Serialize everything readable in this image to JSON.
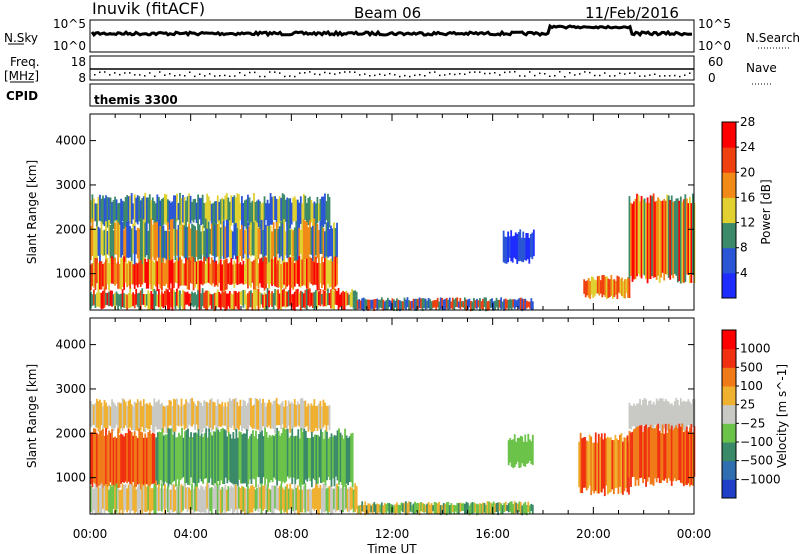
{
  "header": {
    "station": "Inuvik (fitACF)",
    "beam": "Beam 06",
    "date": "11/Feb/2016"
  },
  "strips": {
    "nsky_label": "N.Sky",
    "nsky_ticks": [
      "10^5",
      "10^0"
    ],
    "nsearch_label": "N.Search",
    "nsearch_ticks": [
      "10^5",
      "10^0"
    ],
    "freq_label": "Freq.",
    "freq_unit": "[MHz]",
    "freq_ticks": [
      "18",
      "8"
    ],
    "nave_label": "Nave",
    "nave_ticks": [
      "60",
      "0"
    ],
    "cpid_label": "CPID",
    "cpid_value": "themis 3300"
  },
  "x_axis": {
    "label": "Time UT",
    "ticks": [
      "00:00",
      "04:00",
      "08:00",
      "12:00",
      "16:00",
      "20:00",
      "00:00"
    ]
  },
  "chart_data": [
    {
      "type": "heatmap",
      "quantity": "Power",
      "ylabel": "Slant Range [km]",
      "xlabel": "Time UT",
      "y_ticks": [
        1000,
        2000,
        3000,
        4000
      ],
      "ylim": [
        180,
        4600
      ],
      "xlim_hours": [
        0,
        24
      ],
      "colorbar": {
        "label": "Power [dB]",
        "ticks": [
          "4",
          "8",
          "12",
          "16",
          "20",
          "24",
          "28"
        ],
        "colors": [
          "#1e2cff",
          "#2a56d6",
          "#3d8a6a",
          "#e0d030",
          "#f28a18",
          "#f04010",
          "#ff0000"
        ]
      }
    },
    {
      "type": "heatmap",
      "quantity": "Velocity",
      "ylabel": "Slant Range [km]",
      "xlabel": "Time UT",
      "y_ticks": [
        1000,
        2000,
        3000,
        4000
      ],
      "ylim": [
        180,
        4600
      ],
      "xlim_hours": [
        0,
        24
      ],
      "colorbar": {
        "label": "Velocity [m s^-1]",
        "ticks": [
          "1000",
          "500",
          "100",
          "25",
          "−25",
          "−100",
          "−500",
          "−1000"
        ],
        "colors": [
          "#1f3fc8",
          "#2f6eb0",
          "#3a8a6a",
          "#6cc34a",
          "#c8c8c4",
          "#f0b030",
          "#f07a18",
          "#f03010",
          "#ff0000"
        ]
      }
    }
  ],
  "colors": {
    "frame": "#000000",
    "background": "#ffffff"
  }
}
